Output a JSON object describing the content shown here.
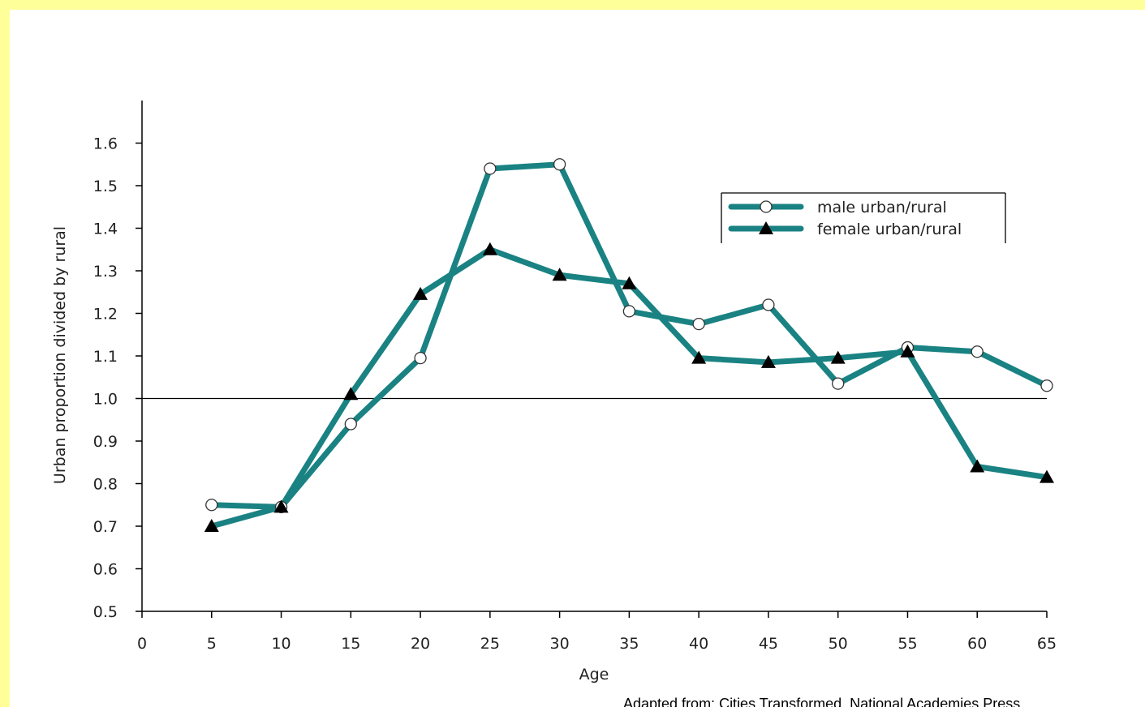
{
  "colors": {
    "background": "#ffffff",
    "frame": "#ffff99",
    "series_line": "#1a8282",
    "axis": "#000000",
    "text": "#222222"
  },
  "source_note": "Adapted from: Cities Transformed, National Academies Press",
  "chart_data": {
    "type": "line",
    "xlabel": "Age",
    "ylabel": "Urban proportion divided by rural",
    "xlim": [
      0,
      65
    ],
    "ylim": [
      0.5,
      1.7
    ],
    "x_ticks": [
      0,
      5,
      10,
      15,
      20,
      25,
      30,
      35,
      40,
      45,
      50,
      55,
      60,
      65
    ],
    "y_ticks": [
      0.5,
      0.6,
      0.7,
      0.8,
      0.9,
      1.0,
      1.1,
      1.2,
      1.3,
      1.4,
      1.5,
      1.6
    ],
    "y_tick_labels": [
      "0.5",
      "0.6",
      "0.7",
      "0.8",
      "0.9",
      "1.0",
      "1.1",
      "1.2",
      "1.3",
      "1.4",
      "1.5",
      "1.6"
    ],
    "reference_line": 1.0,
    "grid": false,
    "legend_position": "top-right",
    "x": [
      5,
      10,
      15,
      20,
      25,
      30,
      35,
      40,
      45,
      50,
      55,
      60,
      65
    ],
    "series": [
      {
        "name": "male urban/rural",
        "marker": "circle",
        "values": [
          0.75,
          0.745,
          0.94,
          1.095,
          1.54,
          1.55,
          1.205,
          1.175,
          1.22,
          1.035,
          1.12,
          1.11,
          1.03
        ]
      },
      {
        "name": "female urban/rural",
        "marker": "triangle",
        "values": [
          0.7,
          0.745,
          1.01,
          1.245,
          1.35,
          1.29,
          1.27,
          1.095,
          1.085,
          1.095,
          1.11,
          0.84,
          0.815
        ]
      }
    ]
  }
}
